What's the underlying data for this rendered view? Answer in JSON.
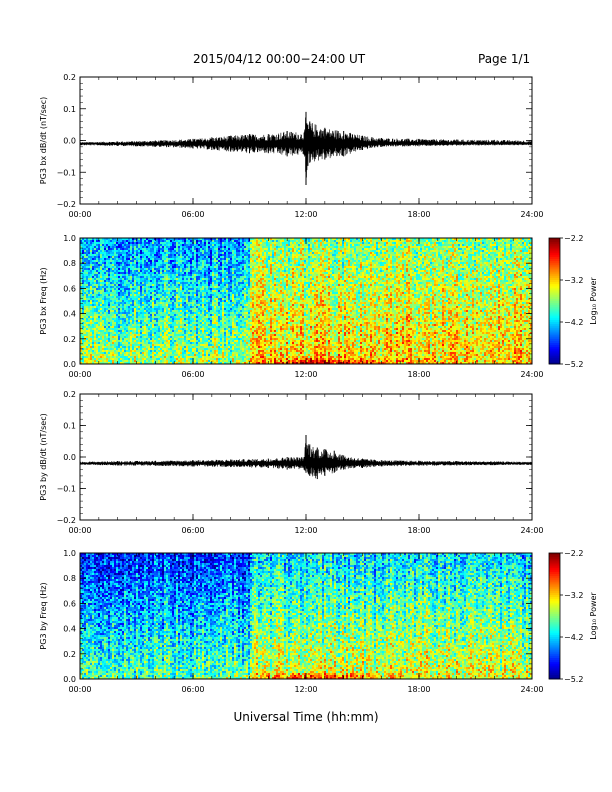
{
  "header": {
    "title": "2015/04/12  00:00−24:00 UT",
    "page": "Page 1/1"
  },
  "footer": {
    "xlabel": "Universal Time (hh:mm)"
  },
  "chart_data": [
    {
      "type": "line",
      "ylabel": "PG3 bx dB/dt (nT/sec)",
      "ylim": [
        -0.2,
        0.2
      ],
      "yticks": [
        "0.2",
        "0.1",
        "0.0",
        "−0.1",
        "−0.2"
      ],
      "xticks": [
        "00:00",
        "06:00",
        "12:00",
        "18:00",
        "24:00"
      ],
      "xlim_hours": [
        0,
        24
      ],
      "baseline": -0.01,
      "series": [
        {
          "x": [
            0,
            2,
            4,
            6,
            7,
            8,
            9,
            10,
            11,
            11.9,
            12.0,
            12.1,
            12.2,
            13,
            14,
            15,
            16,
            18,
            20,
            22,
            24
          ],
          "y_max": [
            -0.005,
            -0.003,
            0.0,
            0.005,
            0.01,
            0.015,
            0.02,
            0.02,
            0.03,
            0.025,
            0.09,
            0.05,
            0.06,
            0.04,
            0.03,
            0.015,
            0.008,
            0.005,
            0.003,
            0.002,
            0.0
          ],
          "y_min": [
            -0.015,
            -0.017,
            -0.02,
            -0.025,
            -0.03,
            -0.035,
            -0.04,
            -0.04,
            -0.05,
            -0.045,
            -0.14,
            -0.08,
            -0.07,
            -0.06,
            -0.05,
            -0.03,
            -0.02,
            -0.018,
            -0.016,
            -0.015,
            -0.015
          ]
        }
      ]
    },
    {
      "type": "heatmap",
      "ylabel": "PG3 bx Freq (Hz)",
      "ylim": [
        0.0,
        1.0
      ],
      "yticks": [
        "1.0",
        "0.8",
        "0.6",
        "0.4",
        "0.2",
        "0.0"
      ],
      "xticks": [
        "00:00",
        "06:00",
        "12:00",
        "18:00",
        "24:00"
      ],
      "colorbar": {
        "label": "Log₁₀ Power",
        "ticks": [
          "−2.2",
          "−3.2",
          "−4.2",
          "−5.2"
        ],
        "range": [
          -5.2,
          -2.2
        ]
      },
      "regions": [
        {
          "from_hour": 0,
          "to_hour": 9,
          "level_low_freq": -3.6,
          "level_high_freq": -4.4
        },
        {
          "from_hour": 9,
          "to_hour": 24,
          "level_low_freq": -3.2,
          "level_high_freq": -3.7
        }
      ],
      "peak": {
        "hour": 12.8,
        "freq": 0.02,
        "level": -2.4
      }
    },
    {
      "type": "line",
      "ylabel": "PG3 by dB/dt (nT/sec)",
      "ylim": [
        -0.2,
        0.2
      ],
      "yticks": [
        "0.2",
        "0.1",
        "0.0",
        "−0.1",
        "−0.2"
      ],
      "xticks": [
        "00:00",
        "06:00",
        "12:00",
        "18:00",
        "24:00"
      ],
      "xlim_hours": [
        0,
        24
      ],
      "baseline": -0.02,
      "series": [
        {
          "x": [
            0,
            2,
            4,
            6,
            8,
            10,
            11,
            11.9,
            12.0,
            12.2,
            12.6,
            13,
            13.5,
            14,
            15,
            16,
            18,
            20,
            22,
            24
          ],
          "y_max": [
            -0.015,
            -0.013,
            -0.012,
            -0.01,
            -0.008,
            -0.005,
            0.0,
            0.0,
            0.07,
            0.04,
            0.03,
            0.025,
            0.02,
            0.005,
            -0.005,
            -0.01,
            -0.012,
            -0.013,
            -0.014,
            -0.015
          ],
          "y_min": [
            -0.025,
            -0.027,
            -0.028,
            -0.03,
            -0.032,
            -0.035,
            -0.04,
            -0.04,
            -0.05,
            -0.06,
            -0.07,
            -0.06,
            -0.05,
            -0.04,
            -0.035,
            -0.03,
            -0.028,
            -0.027,
            -0.026,
            -0.025
          ]
        }
      ]
    },
    {
      "type": "heatmap",
      "ylabel": "PG3 by Freq (Hz)",
      "ylim": [
        0.0,
        1.0
      ],
      "yticks": [
        "1.0",
        "0.8",
        "0.6",
        "0.4",
        "0.2",
        "0.0"
      ],
      "xticks": [
        "00:00",
        "06:00",
        "12:00",
        "18:00",
        "24:00"
      ],
      "colorbar": {
        "label": "Log₁₀ Power",
        "ticks": [
          "−2.2",
          "−3.2",
          "−4.2",
          "−5.2"
        ],
        "range": [
          -5.2,
          -2.2
        ]
      },
      "regions": [
        {
          "from_hour": 0,
          "to_hour": 9,
          "level_low_freq": -3.8,
          "level_high_freq": -4.7
        },
        {
          "from_hour": 9,
          "to_hour": 24,
          "level_low_freq": -3.4,
          "level_high_freq": -4.2
        }
      ],
      "peak": {
        "hour": 12.5,
        "freq": 0.02,
        "level": -2.6
      }
    }
  ]
}
